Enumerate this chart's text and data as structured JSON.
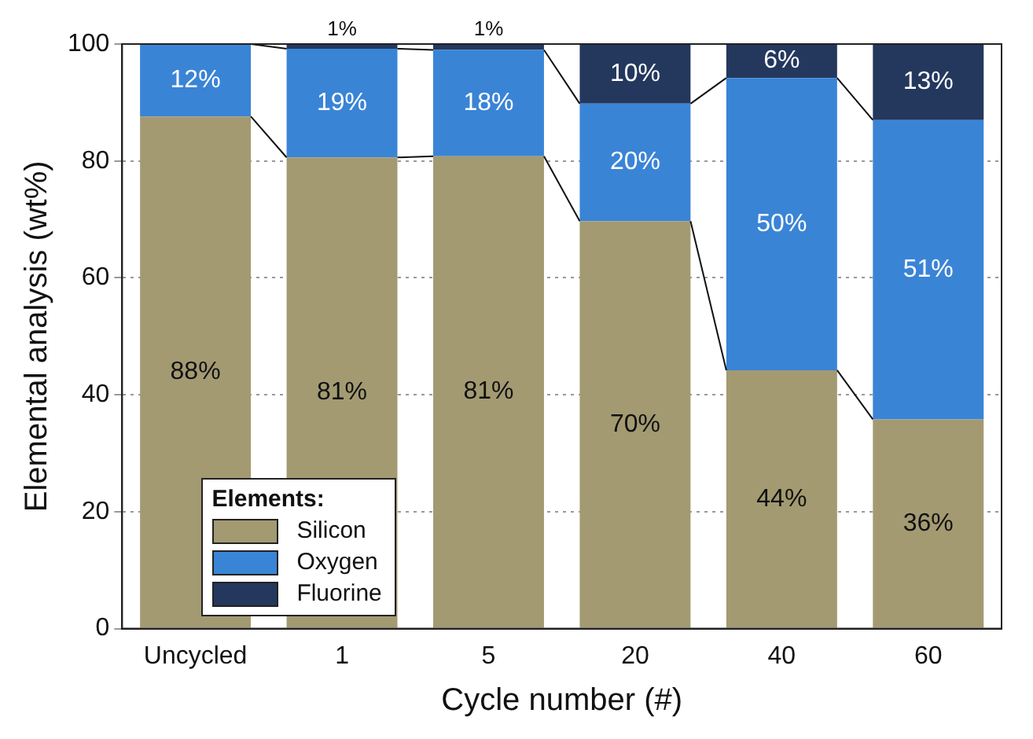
{
  "chart_data": {
    "type": "bar",
    "stacked": true,
    "xlabel": "Cycle number (#)",
    "ylabel": "Elemental analysis (wt%)",
    "legend_title": "Elements:",
    "legend": "bottom left",
    "grid": "y",
    "categories": [
      "Uncycled",
      "1",
      "5",
      "20",
      "40",
      "60"
    ],
    "ylim": [
      0,
      100
    ],
    "yticks": [
      0,
      20,
      40,
      60,
      80,
      100
    ],
    "series": [
      {
        "name": "Silicon",
        "color": "#a39a72",
        "values": [
          87.6,
          80.6,
          80.8,
          69.7,
          44.2,
          35.8
        ],
        "value_labels": [
          "88%",
          "81%",
          "81%",
          "70%",
          "44%",
          "36%"
        ]
      },
      {
        "name": "Oxygen",
        "color": "#3a84d6",
        "values": [
          12.4,
          18.6,
          18.2,
          20.1,
          50.0,
          51.2
        ],
        "value_labels": [
          "12%",
          "19%",
          "18%",
          "20%",
          "50%",
          "51%"
        ]
      },
      {
        "name": "Fluorine",
        "color": "#24385e",
        "values": [
          null,
          0.8,
          1.0,
          10.2,
          5.8,
          13.0
        ],
        "value_labels": [
          null,
          "1%",
          "1%",
          "10%",
          "6%",
          "13%"
        ]
      }
    ]
  }
}
